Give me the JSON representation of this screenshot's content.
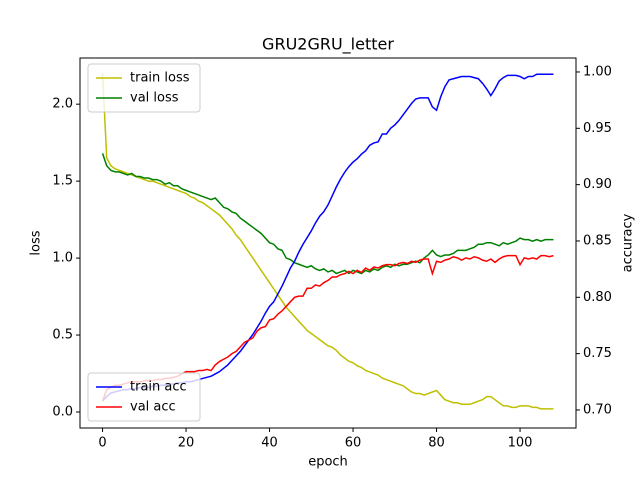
{
  "chart_data": {
    "type": "line",
    "title": "GRU2GRU_letter",
    "xlabel": "epoch",
    "ylabel": "loss",
    "y2label": "accuracy",
    "x": [
      0,
      1,
      2,
      3,
      4,
      5,
      6,
      7,
      8,
      9,
      10,
      11,
      12,
      13,
      14,
      15,
      16,
      17,
      18,
      19,
      20,
      21,
      22,
      23,
      24,
      25,
      26,
      27,
      28,
      29,
      30,
      31,
      32,
      33,
      34,
      35,
      36,
      37,
      38,
      39,
      40,
      41,
      42,
      43,
      44,
      45,
      46,
      47,
      48,
      49,
      50,
      51,
      52,
      53,
      54,
      55,
      56,
      57,
      58,
      59,
      60,
      61,
      62,
      63,
      64,
      65,
      66,
      67,
      68,
      69,
      70,
      71,
      72,
      73,
      74,
      75,
      76,
      77,
      78,
      79,
      80,
      81,
      82,
      83,
      84,
      85,
      86,
      87,
      88,
      89,
      90,
      91,
      92,
      93,
      94,
      95,
      96,
      97,
      98,
      99,
      100,
      101,
      102,
      103,
      104,
      105,
      106,
      107,
      108
    ],
    "xlim": [
      -5.4,
      113.4
    ],
    "xticks": [
      0,
      20,
      40,
      60,
      80,
      100
    ],
    "ylim": [
      -0.104,
      2.3
    ],
    "yticks": [
      {
        "value": 0,
        "label": "0.0"
      },
      0.5,
      {
        "value": 1,
        "label": "1.0"
      },
      1.5,
      {
        "value": 2,
        "label": "2.0"
      }
    ],
    "y2lim": [
      0.684,
      1.0124
    ],
    "y2ticks": [
      {
        "value": 0.7,
        "label": "0.70"
      },
      0.75,
      {
        "value": 0.8,
        "label": "0.80"
      },
      0.85,
      {
        "value": 0.9,
        "label": "0.90"
      },
      0.95,
      {
        "value": 1,
        "label": "1.00"
      }
    ],
    "grid": false,
    "legend_loc": "upper left",
    "legend2_loc": "lower left",
    "series": [
      {
        "name": "train loss",
        "color": "#bfbf00",
        "values": [
          2.2,
          1.65,
          1.6,
          1.58,
          1.57,
          1.56,
          1.55,
          1.54,
          1.53,
          1.52,
          1.51,
          1.5,
          1.5,
          1.49,
          1.48,
          1.47,
          1.46,
          1.45,
          1.44,
          1.43,
          1.42,
          1.4,
          1.39,
          1.37,
          1.36,
          1.34,
          1.32,
          1.3,
          1.28,
          1.25,
          1.22,
          1.19,
          1.15,
          1.12,
          1.08,
          1.04,
          1.0,
          0.96,
          0.92,
          0.88,
          0.84,
          0.8,
          0.76,
          0.72,
          0.68,
          0.65,
          0.62,
          0.59,
          0.56,
          0.53,
          0.51,
          0.49,
          0.47,
          0.45,
          0.43,
          0.42,
          0.4,
          0.37,
          0.35,
          0.33,
          0.32,
          0.3,
          0.29,
          0.27,
          0.26,
          0.25,
          0.24,
          0.22,
          0.21,
          0.2,
          0.19,
          0.18,
          0.17,
          0.15,
          0.13,
          0.12,
          0.12,
          0.11,
          0.12,
          0.13,
          0.14,
          0.11,
          0.08,
          0.07,
          0.06,
          0.06,
          0.05,
          0.05,
          0.05,
          0.06,
          0.07,
          0.08,
          0.1,
          0.1,
          0.08,
          0.06,
          0.04,
          0.04,
          0.03,
          0.03,
          0.04,
          0.04,
          0.04,
          0.03,
          0.03,
          0.02,
          0.02,
          0.02,
          0.02
        ]
      },
      {
        "name": "val loss",
        "color": "#008000",
        "values": [
          1.68,
          1.6,
          1.57,
          1.56,
          1.56,
          1.55,
          1.54,
          1.55,
          1.53,
          1.53,
          1.52,
          1.52,
          1.51,
          1.51,
          1.5,
          1.48,
          1.49,
          1.47,
          1.47,
          1.45,
          1.44,
          1.43,
          1.42,
          1.41,
          1.4,
          1.39,
          1.38,
          1.39,
          1.36,
          1.33,
          1.32,
          1.3,
          1.29,
          1.26,
          1.24,
          1.22,
          1.2,
          1.18,
          1.16,
          1.13,
          1.1,
          1.09,
          1.06,
          1.05,
          1.0,
          0.99,
          0.97,
          0.96,
          0.95,
          0.94,
          0.95,
          0.93,
          0.92,
          0.93,
          0.91,
          0.92,
          0.9,
          0.91,
          0.92,
          0.9,
          0.92,
          0.91,
          0.9,
          0.92,
          0.91,
          0.93,
          0.92,
          0.94,
          0.95,
          0.94,
          0.96,
          0.95,
          0.96,
          0.96,
          0.97,
          0.98,
          0.97,
          1.0,
          1.02,
          1.05,
          1.02,
          1.01,
          1.02,
          1.02,
          1.03,
          1.05,
          1.05,
          1.05,
          1.06,
          1.07,
          1.09,
          1.09,
          1.1,
          1.1,
          1.09,
          1.08,
          1.1,
          1.09,
          1.1,
          1.11,
          1.13,
          1.12,
          1.12,
          1.11,
          1.12,
          1.11,
          1.12,
          1.12,
          1.12
        ]
      },
      {
        "name": "train acc",
        "color": "#0000ff",
        "axis": "y2",
        "values": [
          0.708,
          0.712,
          0.715,
          0.716,
          0.717,
          0.718,
          0.718,
          0.719,
          0.719,
          0.72,
          0.72,
          0.72,
          0.721,
          0.721,
          0.722,
          0.722,
          0.723,
          0.723,
          0.724,
          0.724,
          0.725,
          0.725,
          0.726,
          0.727,
          0.728,
          0.729,
          0.73,
          0.732,
          0.734,
          0.737,
          0.74,
          0.744,
          0.748,
          0.752,
          0.757,
          0.762,
          0.767,
          0.773,
          0.779,
          0.786,
          0.792,
          0.796,
          0.803,
          0.81,
          0.818,
          0.826,
          0.832,
          0.84,
          0.847,
          0.853,
          0.859,
          0.866,
          0.872,
          0.876,
          0.882,
          0.89,
          0.898,
          0.905,
          0.911,
          0.916,
          0.92,
          0.923,
          0.927,
          0.93,
          0.935,
          0.937,
          0.938,
          0.945,
          0.945,
          0.95,
          0.953,
          0.957,
          0.962,
          0.967,
          0.972,
          0.976,
          0.977,
          0.977,
          0.977,
          0.969,
          0.966,
          0.978,
          0.987,
          0.993,
          0.994,
          0.995,
          0.996,
          0.996,
          0.996,
          0.995,
          0.994,
          0.99,
          0.985,
          0.979,
          0.985,
          0.992,
          0.995,
          0.997,
          0.997,
          0.997,
          0.996,
          0.994,
          0.996,
          0.996,
          0.998,
          0.998,
          0.998,
          0.998,
          0.998
        ]
      },
      {
        "name": "val acc",
        "color": "#ff0000",
        "axis": "y2",
        "values": [
          0.708,
          0.718,
          0.72,
          0.722,
          0.722,
          0.723,
          0.724,
          0.725,
          0.725,
          0.725,
          0.726,
          0.726,
          0.726,
          0.727,
          0.727,
          0.728,
          0.728,
          0.729,
          0.73,
          0.732,
          0.734,
          0.734,
          0.734,
          0.735,
          0.735,
          0.736,
          0.735,
          0.74,
          0.743,
          0.745,
          0.747,
          0.75,
          0.752,
          0.756,
          0.76,
          0.762,
          0.764,
          0.77,
          0.773,
          0.774,
          0.78,
          0.781,
          0.785,
          0.788,
          0.792,
          0.796,
          0.8,
          0.801,
          0.801,
          0.808,
          0.808,
          0.811,
          0.81,
          0.813,
          0.815,
          0.818,
          0.818,
          0.82,
          0.821,
          0.823,
          0.821,
          0.824,
          0.822,
          0.826,
          0.824,
          0.827,
          0.826,
          0.828,
          0.829,
          0.829,
          0.828,
          0.83,
          0.831,
          0.83,
          0.832,
          0.831,
          0.833,
          0.834,
          0.834,
          0.821,
          0.832,
          0.831,
          0.833,
          0.834,
          0.836,
          0.835,
          0.833,
          0.835,
          0.834,
          0.836,
          0.835,
          0.833,
          0.832,
          0.834,
          0.831,
          0.834,
          0.836,
          0.837,
          0.837,
          0.837,
          0.829,
          0.835,
          0.834,
          0.835,
          0.834,
          0.837,
          0.837,
          0.836,
          0.837
        ]
      }
    ]
  }
}
